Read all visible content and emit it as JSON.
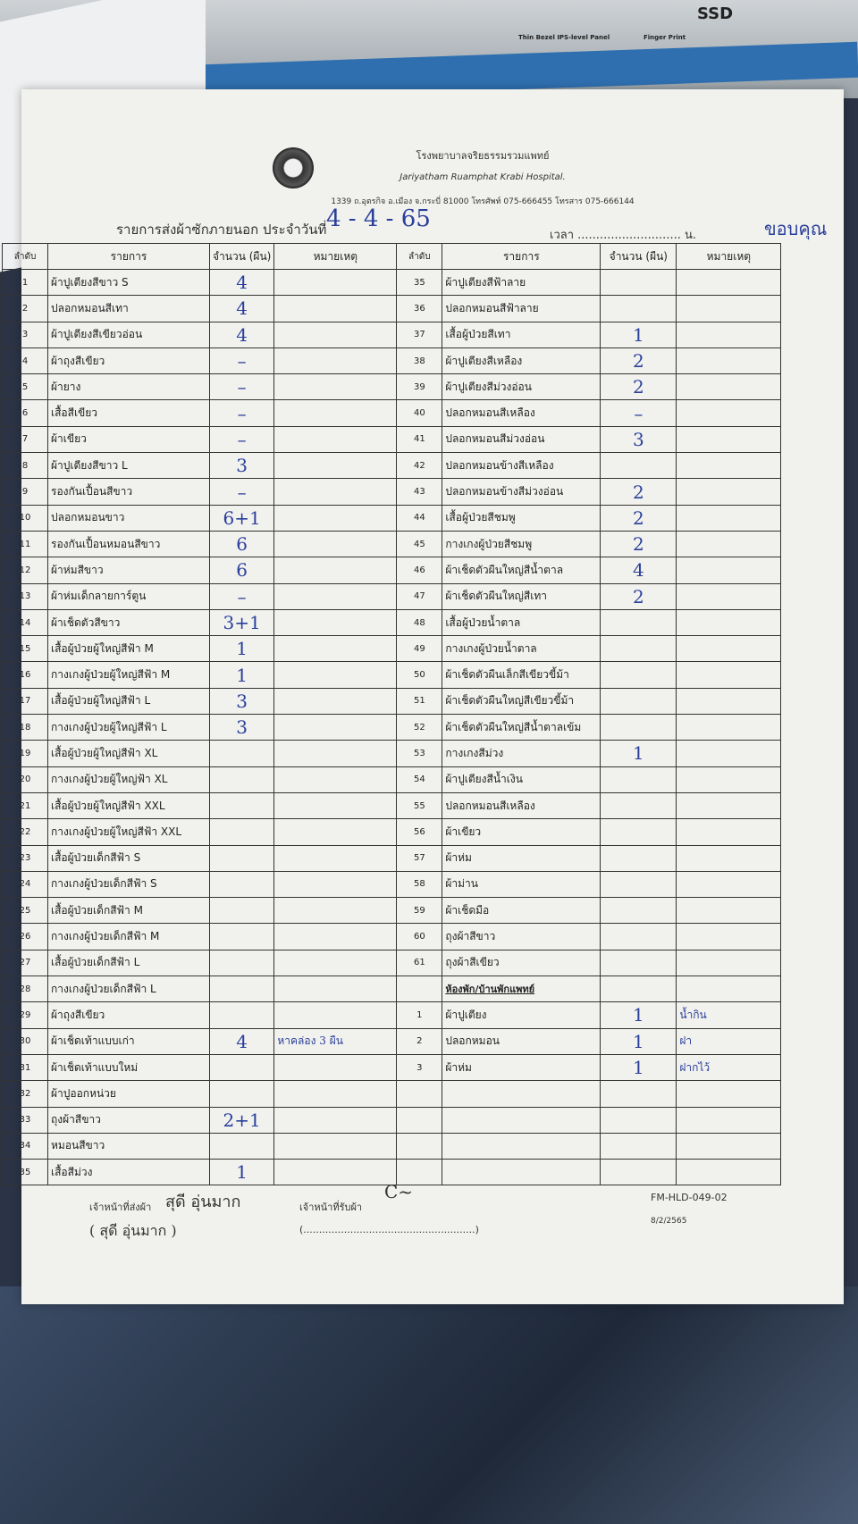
{
  "background": {
    "box_labels": "SSD",
    "box_caption_1": "Thin Bezel IPS-level Panel",
    "box_caption_2": "Finger Print"
  },
  "header": {
    "hospital_th": "โรงพยาบาลจริยธรรมรวมแพทย์",
    "hospital_en": "Jariyatham Ruamphat Krabi Hospital.",
    "address": "1339 ถ.อุตรกิจ อ.เมือง จ.กระบี่ 81000 โทรศัพท์ 075-666455 โทรสาร 075-666144",
    "title": "รายการส่งผ้าซักภายนอก ประจำวันที่",
    "date": "4 - 4 - 65",
    "time_label": "เวลา ............................ น.",
    "corner_note": "ขอบคุณ"
  },
  "columns": {
    "no": "ลำดับ",
    "item": "รายการ",
    "qty": "จำนวน (ผืน)",
    "note": "หมายเหตุ"
  },
  "left_rows": [
    {
      "no": "1",
      "item": "ผ้าปูเตียงสีขาว S",
      "qty": "4",
      "note": ""
    },
    {
      "no": "2",
      "item": "ปลอกหมอนสีเทา",
      "qty": "4",
      "note": ""
    },
    {
      "no": "3",
      "item": "ผ้าปูเตียงสีเขียวอ่อน",
      "qty": "4",
      "note": ""
    },
    {
      "no": "4",
      "item": "ผ้าถุงสีเขียว",
      "qty": "–",
      "note": ""
    },
    {
      "no": "5",
      "item": "ผ้ายาง",
      "qty": "–",
      "note": ""
    },
    {
      "no": "6",
      "item": "เสื้อสีเขียว",
      "qty": "–",
      "note": ""
    },
    {
      "no": "7",
      "item": "ผ้าเขียว",
      "qty": "–",
      "note": ""
    },
    {
      "no": "8",
      "item": "ผ้าปูเตียงสีขาว L",
      "qty": "3",
      "note": ""
    },
    {
      "no": "9",
      "item": "รองกันเปื้อนสีขาว",
      "qty": "–",
      "note": ""
    },
    {
      "no": "10",
      "item": "ปลอกหมอนขาว",
      "qty": "6+1",
      "note": ""
    },
    {
      "no": "11",
      "item": "รองกันเปื้อนหมอนสีขาว",
      "qty": "6",
      "note": ""
    },
    {
      "no": "12",
      "item": "ผ้าห่มสีขาว",
      "qty": "6",
      "note": ""
    },
    {
      "no": "13",
      "item": "ผ้าห่มเด็กลายการ์ตูน",
      "qty": "–",
      "note": ""
    },
    {
      "no": "14",
      "item": "ผ้าเช็ดตัวสีขาว",
      "qty": "3+1",
      "note": ""
    },
    {
      "no": "15",
      "item": "เสื้อผู้ป่วยผู้ใหญ่สีฟ้า M",
      "qty": "1",
      "note": ""
    },
    {
      "no": "16",
      "item": "กางเกงผู้ป่วยผู้ใหญ่สีฟ้า M",
      "qty": "1",
      "note": ""
    },
    {
      "no": "17",
      "item": "เสื้อผู้ป่วยผู้ใหญ่สีฟ้า L",
      "qty": "3",
      "note": ""
    },
    {
      "no": "18",
      "item": "กางเกงผู้ป่วยผู้ใหญ่สีฟ้า L",
      "qty": "3",
      "note": ""
    },
    {
      "no": "19",
      "item": "เสื้อผู้ป่วยผู้ใหญ่สีฟ้า XL",
      "qty": "",
      "note": ""
    },
    {
      "no": "20",
      "item": "กางเกงผู้ป่วยผู้ใหญ่ฟ้า XL",
      "qty": "",
      "note": ""
    },
    {
      "no": "21",
      "item": "เสื้อผู้ป่วยผู้ใหญ่สีฟ้า XXL",
      "qty": "",
      "note": ""
    },
    {
      "no": "22",
      "item": "กางเกงผู้ป่วยผู้ใหญ่สีฟ้า XXL",
      "qty": "",
      "note": ""
    },
    {
      "no": "23",
      "item": "เสื้อผู้ป่วยเด็กสีฟ้า S",
      "qty": "",
      "note": ""
    },
    {
      "no": "24",
      "item": "กางเกงผู้ป่วยเด็กสีฟ้า S",
      "qty": "",
      "note": ""
    },
    {
      "no": "25",
      "item": "เสื้อผู้ป่วยเด็กสีฟ้า M",
      "qty": "",
      "note": ""
    },
    {
      "no": "26",
      "item": "กางเกงผู้ป่วยเด็กสีฟ้า M",
      "qty": "",
      "note": ""
    },
    {
      "no": "27",
      "item": "เสื้อผู้ป่วยเด็กสีฟ้า L",
      "qty": "",
      "note": ""
    },
    {
      "no": "28",
      "item": "กางเกงผู้ป่วยเด็กสีฟ้า L",
      "qty": "",
      "note": ""
    },
    {
      "no": "29",
      "item": "ผ้าถุงสีเขียว",
      "qty": "",
      "note": ""
    },
    {
      "no": "30",
      "item": "ผ้าเช็ดเท้าแบบเก่า",
      "qty": "4",
      "note": "หาคล่อง 3 ผืน"
    },
    {
      "no": "31",
      "item": "ผ้าเช็ดเท้าแบบใหม่",
      "qty": "",
      "note": ""
    },
    {
      "no": "32",
      "item": "ผ้าปูออกหน่วย",
      "qty": "",
      "note": ""
    },
    {
      "no": "33",
      "item": "ถุงผ้าสีขาว",
      "qty": "2+1",
      "note": ""
    },
    {
      "no": "34",
      "item": "หมอนสีขาว",
      "qty": "",
      "note": ""
    },
    {
      "no": "35",
      "item": "เสื้อสีม่วง",
      "qty": "1",
      "note": ""
    }
  ],
  "right_rows": [
    {
      "no": "35",
      "item": "ผ้าปูเตียงสีฟ้าลาย",
      "qty": "",
      "note": ""
    },
    {
      "no": "36",
      "item": "ปลอกหมอนสีฟ้าลาย",
      "qty": "",
      "note": ""
    },
    {
      "no": "37",
      "item": "เสื้อผู้ป่วยสีเทา",
      "qty": "1",
      "note": ""
    },
    {
      "no": "38",
      "item": "ผ้าปูเตียงสีเหลือง",
      "qty": "2",
      "note": ""
    },
    {
      "no": "39",
      "item": "ผ้าปูเตียงสีม่วงอ่อน",
      "qty": "2",
      "note": ""
    },
    {
      "no": "40",
      "item": "ปลอกหมอนสีเหลือง",
      "qty": "–",
      "note": ""
    },
    {
      "no": "41",
      "item": "ปลอกหมอนสีม่วงอ่อน",
      "qty": "3",
      "note": ""
    },
    {
      "no": "42",
      "item": "ปลอกหมอนข้างสีเหลือง",
      "qty": "",
      "note": ""
    },
    {
      "no": "43",
      "item": "ปลอกหมอนข้างสีม่วงอ่อน",
      "qty": "2",
      "note": ""
    },
    {
      "no": "44",
      "item": "เสื้อผู้ป่วยสีชมพู",
      "qty": "2",
      "note": ""
    },
    {
      "no": "45",
      "item": "กางเกงผู้ป่วยสีชมพู",
      "qty": "2",
      "note": ""
    },
    {
      "no": "46",
      "item": "ผ้าเช็ดตัวผืนใหญ่สีน้ำตาล",
      "qty": "4",
      "note": ""
    },
    {
      "no": "47",
      "item": "ผ้าเช็ดตัวผืนใหญ่สีเทา",
      "qty": "2",
      "note": ""
    },
    {
      "no": "48",
      "item": "เสื้อผู้ป่วยน้ำตาล",
      "qty": "",
      "note": ""
    },
    {
      "no": "49",
      "item": "กางเกงผู้ป่วยน้ำตาล",
      "qty": "",
      "note": ""
    },
    {
      "no": "50",
      "item": "ผ้าเช็ดตัวผืนเล็กสีเขียวขี้ม้า",
      "qty": "",
      "note": ""
    },
    {
      "no": "51",
      "item": "ผ้าเช็ดตัวผืนใหญ่สีเขียวขี้ม้า",
      "qty": "",
      "note": ""
    },
    {
      "no": "52",
      "item": "ผ้าเช็ดตัวผืนใหญ่สีน้ำตาลเข้ม",
      "qty": "",
      "note": ""
    },
    {
      "no": "53",
      "item": "กางเกงสีม่วง",
      "qty": "1",
      "note": ""
    },
    {
      "no": "54",
      "item": "ผ้าปูเตียงสีน้ำเงิน",
      "qty": "",
      "note": ""
    },
    {
      "no": "55",
      "item": "ปลอกหมอนสีเหลือง",
      "qty": "",
      "note": ""
    },
    {
      "no": "56",
      "item": "ผ้าเขียว",
      "qty": "",
      "note": ""
    },
    {
      "no": "57",
      "item": "ผ้าห่ม",
      "qty": "",
      "note": ""
    },
    {
      "no": "58",
      "item": "ผ้าม่าน",
      "qty": "",
      "note": ""
    },
    {
      "no": "59",
      "item": "ผ้าเช็ดมือ",
      "qty": "",
      "note": ""
    },
    {
      "no": "60",
      "item": "ถุงผ้าสีขาว",
      "qty": "",
      "note": ""
    },
    {
      "no": "61",
      "item": "ถุงผ้าสีเขียว",
      "qty": "",
      "note": ""
    },
    {
      "no": "",
      "item": "ห้องพัก/บ้านพักแพทย์",
      "qty": "",
      "note": "",
      "section": true
    },
    {
      "no": "1",
      "item": "ผ้าปูเตียง",
      "qty": "1",
      "note": "น้ำกิน"
    },
    {
      "no": "2",
      "item": "ปลอกหมอน",
      "qty": "1",
      "note": "ฝา"
    },
    {
      "no": "3",
      "item": "ผ้าห่ม",
      "qty": "1",
      "note": "ฝากไว้"
    },
    {
      "no": "",
      "item": "",
      "qty": "",
      "note": ""
    },
    {
      "no": "",
      "item": "",
      "qty": "",
      "note": ""
    },
    {
      "no": "",
      "item": "",
      "qty": "",
      "note": ""
    },
    {
      "no": "",
      "item": "",
      "qty": "",
      "note": ""
    }
  ],
  "footer": {
    "sender_label": "เจ้าหน้าที่ส่งผ้า",
    "sender_name": "สุดี อุ่นมาก",
    "sender_paren": "( สุดี อุ่นมาก )",
    "receiver_label": "เจ้าหน้าที่รับผ้า",
    "receiver_sign": "C~",
    "receiver_paren": "(.......................................................)",
    "form_code": "FM-HLD-049-02",
    "form_date": "8/2/2565"
  }
}
